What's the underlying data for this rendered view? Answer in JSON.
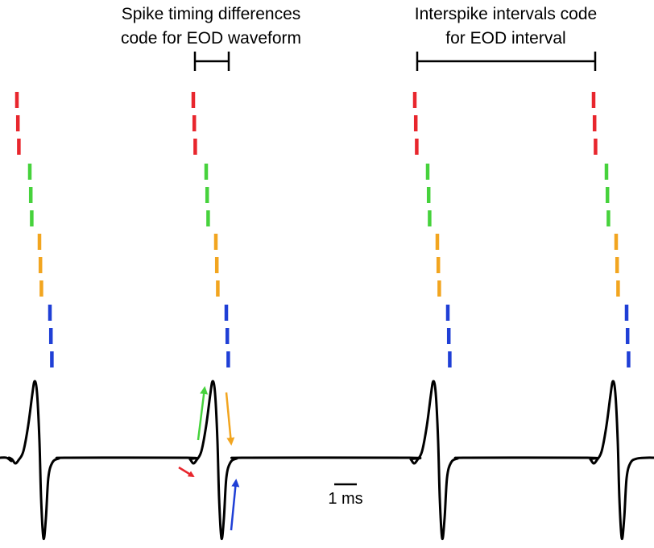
{
  "annotations": {
    "left_line1": "Spike timing differences",
    "left_line2": "code for EOD waveform",
    "right_line1": "Interspike intervals code",
    "right_line2": "for EOD interval"
  },
  "scale_bar": {
    "label": "1 ms"
  },
  "spike_trains": [
    {
      "name": "red",
      "color": "#e8262d"
    },
    {
      "name": "green",
      "color": "#46d23c"
    },
    {
      "name": "orange",
      "color": "#f2a51f"
    },
    {
      "name": "blue",
      "color": "#1f3fd6"
    }
  ],
  "colors": {
    "trace": "#000000",
    "red_arrow": "#e8262d",
    "green_arrow": "#46d23c",
    "orange_arrow": "#f2a51f",
    "blue_arrow": "#1f3fd6"
  }
}
